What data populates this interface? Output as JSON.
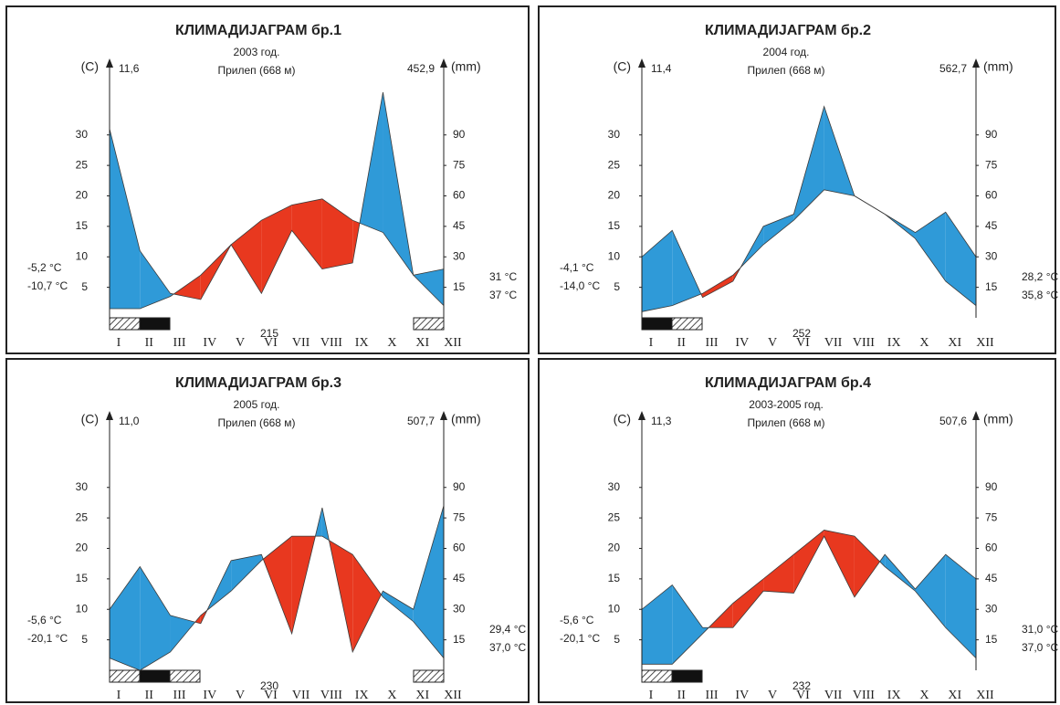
{
  "chart_data": [
    {
      "type": "climate-diagram",
      "title": "КЛИМАДИЈАГРАМ бр.1",
      "subtitle": "2003 год.",
      "station": "Прилеп (668 м)",
      "y_label": "(C)",
      "y2_label": "(mm)",
      "y_top_annotation": "11,6",
      "y2_top_annotation": "452,9",
      "left_annotations": [
        "-5,2 °C",
        "-10,7 °C"
      ],
      "right_annotations": [
        "31 °C",
        "37 °C"
      ],
      "bottom_annotation": "215",
      "categories": [
        "I",
        "II",
        "III",
        "IV",
        "V",
        "VI",
        "VII",
        "VIII",
        "IX",
        "X",
        "XI",
        "XII"
      ],
      "series": [
        {
          "color": "#3a3a3a",
          "values": [
            1.5,
            1.5,
            3.5,
            7,
            12,
            16,
            18.5,
            19.5,
            16,
            14,
            7,
            2
          ]
        },
        {
          "color": "#3a3a3a",
          "axis": "y2",
          "values": [
            93,
            33,
            12,
            9,
            36,
            12,
            43,
            24,
            27,
            111,
            21,
            24
          ]
        }
      ],
      "humid_color": "#2f9ad8",
      "arid_color": "#e8381f",
      "ylim": [
        0,
        40
      ],
      "yticks": [
        5,
        10,
        15,
        20,
        25,
        30
      ],
      "y2lim": [
        0,
        120
      ],
      "y2ticks": [
        15,
        30,
        45,
        60,
        75,
        90
      ]
    },
    {
      "type": "climate-diagram",
      "title": "КЛИМАДИЈАГРАМ бр.2",
      "subtitle": "2004 год.",
      "station": "Прилеп (668 м)",
      "y_label": "(C)",
      "y2_label": "(mm)",
      "y_top_annotation": "11,4",
      "y2_top_annotation": "562,7",
      "left_annotations": [
        "-4,1 °C",
        "-14,0 °C"
      ],
      "right_annotations": [
        "28,2 °C",
        "35,8 °C"
      ],
      "bottom_annotation": "252",
      "categories": [
        "I",
        "II",
        "III",
        "IV",
        "V",
        "VI",
        "VII",
        "VIII",
        "IX",
        "X",
        "XI",
        "XII"
      ],
      "series": [
        {
          "color": "#3a3a3a",
          "values": [
            1,
            2,
            4,
            7,
            12,
            16,
            21,
            20,
            17,
            13,
            6,
            2
          ]
        },
        {
          "color": "#3a3a3a",
          "axis": "y2",
          "values": [
            30,
            43,
            10,
            18,
            45,
            51,
            104,
            60,
            51,
            42,
            52,
            30
          ]
        }
      ],
      "humid_color": "#2f9ad8",
      "arid_color": "#e8381f",
      "ylim": [
        0,
        40
      ],
      "yticks": [
        5,
        10,
        15,
        20,
        25,
        30
      ],
      "y2lim": [
        0,
        120
      ],
      "y2ticks": [
        15,
        30,
        45,
        60,
        75,
        90
      ]
    },
    {
      "type": "climate-diagram",
      "title": "КЛИМАДИЈАГРАМ бр.3",
      "subtitle": "2005 год.",
      "station": "Прилеп (668 м)",
      "y_label": "(C)",
      "y2_label": "(mm)",
      "y_top_annotation": "11,0",
      "y2_top_annotation": "507,7",
      "left_annotations": [
        "-5,6 °C",
        "-20,1 °C"
      ],
      "right_annotations": [
        "29,4 °C",
        "37,0 °C"
      ],
      "bottom_annotation": "230",
      "categories": [
        "I",
        "II",
        "III",
        "IV",
        "V",
        "VI",
        "VII",
        "VIII",
        "IX",
        "X",
        "XI",
        "XII"
      ],
      "series": [
        {
          "color": "#3a3a3a",
          "values": [
            2,
            0,
            3,
            9,
            13,
            18,
            22,
            22,
            19,
            12,
            8,
            2
          ]
        },
        {
          "color": "#3a3a3a",
          "axis": "y2",
          "values": [
            30,
            51,
            27,
            23,
            54,
            57,
            18,
            80,
            9,
            39,
            30,
            81
          ]
        }
      ],
      "humid_color": "#2f9ad8",
      "arid_color": "#e8381f",
      "ylim": [
        0,
        40
      ],
      "yticks": [
        5,
        10,
        15,
        20,
        25,
        30
      ],
      "y2lim": [
        0,
        120
      ],
      "y2ticks": [
        15,
        30,
        45,
        60,
        75,
        90
      ]
    },
    {
      "type": "climate-diagram",
      "title": "КЛИМАДИЈАГРАМ бр.4",
      "subtitle": "2003-2005 год.",
      "station": "Прилеп (668 м)",
      "y_label": "(C)",
      "y2_label": "(mm)",
      "y_top_annotation": "11,3",
      "y2_top_annotation": "507,6",
      "left_annotations": [
        "-5,6 °C",
        "-20,1 °C"
      ],
      "right_annotations": [
        "31,0 °C",
        "37,0 °C"
      ],
      "bottom_annotation": "232",
      "categories": [
        "I",
        "II",
        "III",
        "IV",
        "V",
        "VI",
        "VII",
        "VIII",
        "IX",
        "X",
        "XI",
        "XII"
      ],
      "series": [
        {
          "color": "#3a3a3a",
          "values": [
            1,
            1,
            6,
            11,
            15,
            19,
            23,
            22,
            17,
            13,
            7,
            2
          ]
        },
        {
          "color": "#3a3a3a",
          "axis": "y2",
          "values": [
            30,
            42,
            21,
            21,
            39,
            38,
            66,
            36,
            57,
            40,
            57,
            45
          ]
        }
      ],
      "humid_color": "#2f9ad8",
      "arid_color": "#e8381f",
      "ylim": [
        0,
        40
      ],
      "yticks": [
        5,
        10,
        15,
        20,
        25,
        30
      ],
      "y2lim": [
        0,
        120
      ],
      "y2ticks": [
        15,
        30,
        45,
        60,
        75,
        90
      ]
    }
  ]
}
